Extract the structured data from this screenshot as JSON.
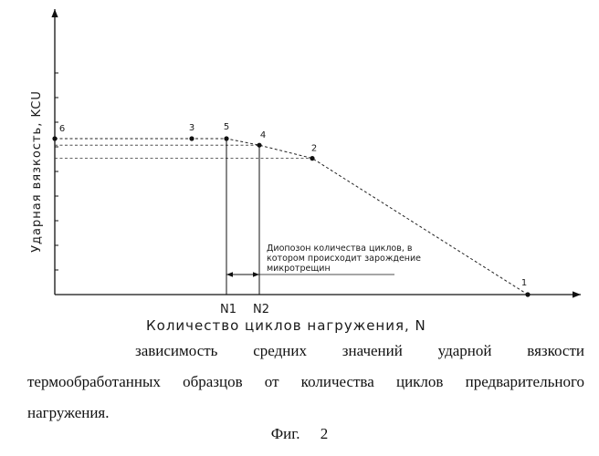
{
  "chart_data": {
    "type": "line",
    "title": "",
    "xlabel": "Количество циклов нагружения, N",
    "ylabel": "Ударная вязкость, KCU",
    "xlim": [
      0,
      520
    ],
    "ylim": [
      0,
      300
    ],
    "grid": false,
    "legend": "none",
    "series": [
      {
        "points": [
          {
            "label": "6",
            "x": 0,
            "y": 190
          },
          {
            "label": "3",
            "x": 150,
            "y": 190
          },
          {
            "label": "5",
            "x": 188,
            "y": 190
          },
          {
            "label": "4",
            "x": 224,
            "y": 182
          },
          {
            "label": "2",
            "x": 282,
            "y": 166
          },
          {
            "label": "1",
            "x": 518,
            "y": 0
          }
        ]
      }
    ],
    "x_ticks": [
      "N1",
      "N2"
    ],
    "x_tick_values": [
      188,
      224
    ],
    "annotation": {
      "text_lines": [
        "Диопозон количества циклов, в",
        "котором происходит зарождение",
        "микротрещин"
      ]
    }
  },
  "caption": {
    "text": "зависимость средних значений ударной вязкости термообработанных образцов от количества циклов предварительного нагружения."
  },
  "figure_label": "Фиг. 2"
}
